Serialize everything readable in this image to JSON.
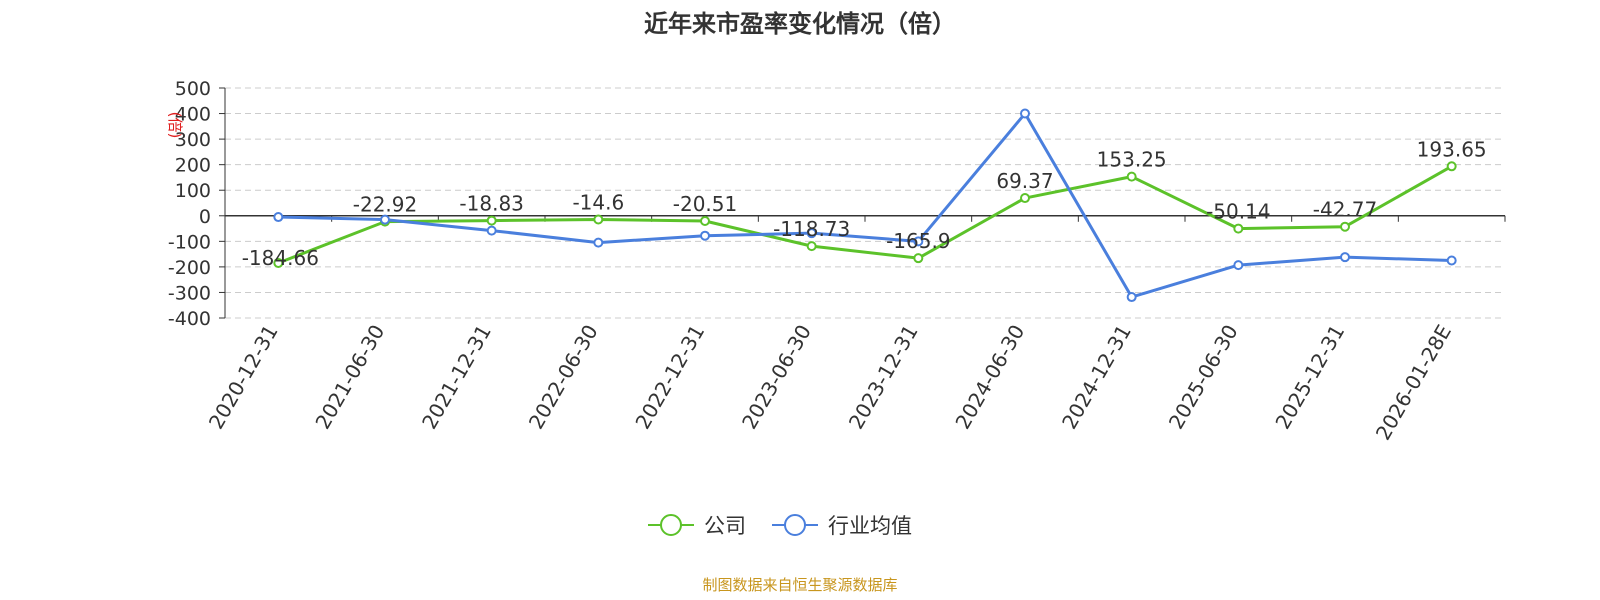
{
  "chart_data": {
    "type": "line",
    "title": "近年来市盈率变化情况（倍）",
    "ylabel": "(倍)",
    "xlabel": "",
    "ylim": [
      -400,
      500
    ],
    "yticks": [
      500,
      400,
      300,
      200,
      100,
      0,
      -100,
      -200,
      -300,
      -400
    ],
    "grid": true,
    "legend_position": "bottom",
    "categories": [
      "2020-12-31",
      "2021-06-30",
      "2021-12-31",
      "2022-06-30",
      "2022-12-31",
      "2023-06-30",
      "2023-12-31",
      "2024-06-30",
      "2024-12-31",
      "2025-06-30",
      "2025-12-31",
      "2026-01-28E"
    ],
    "series": [
      {
        "name": "公司",
        "color": "#5cc22a",
        "values": [
          -184.66,
          -22.92,
          -18.83,
          -14.6,
          -20.51,
          -118.73,
          -165.9,
          69.37,
          153.25,
          -50.14,
          -42.77,
          193.65
        ],
        "labels": [
          "-184.66",
          "-22.92",
          "-18.83",
          "-14.6",
          "-20.51",
          "-118.73",
          "-165.9",
          "69.37",
          "153.25",
          "-50.14",
          "-42.77",
          "193.65"
        ]
      },
      {
        "name": "行业均值",
        "color": "#4a7fdd",
        "values": [
          -5,
          -15,
          -58,
          -105,
          -78,
          -68,
          -100,
          400,
          -318,
          -193,
          -162,
          -175
        ]
      }
    ]
  },
  "source": "制图数据来自恒生聚源数据库"
}
